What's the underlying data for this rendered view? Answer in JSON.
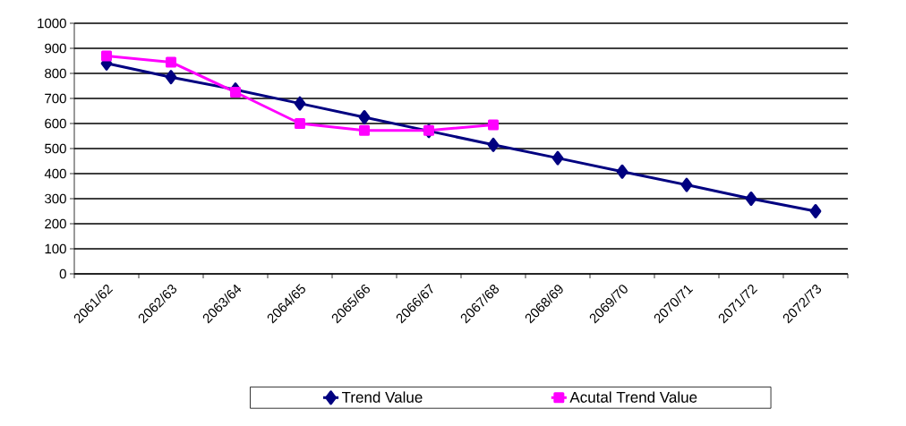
{
  "chart_data": {
    "type": "line",
    "categories": [
      "2061/62",
      "2062/63",
      "2063/64",
      "2064/65",
      "2065/66",
      "2066/67",
      "2067/68",
      "2068/69",
      "2069/70",
      "2070/71",
      "2071/72",
      "2072/73"
    ],
    "series": [
      {
        "name": "Trend Value",
        "color": "#000080",
        "marker": "diamond",
        "values": [
          840,
          785,
          735,
          680,
          625,
          570,
          515,
          462,
          408,
          355,
          300,
          250
        ]
      },
      {
        "name": "Acutal Trend Value",
        "color": "#ff00ff",
        "marker": "square",
        "values": [
          870,
          845,
          725,
          600,
          572,
          572,
          595,
          null,
          null,
          null,
          null,
          null
        ]
      }
    ],
    "ylim": [
      0,
      1000
    ],
    "yticks": [
      0,
      100,
      200,
      300,
      400,
      500,
      600,
      700,
      800,
      900,
      1000
    ],
    "grid": "y",
    "legend": "bottom"
  }
}
